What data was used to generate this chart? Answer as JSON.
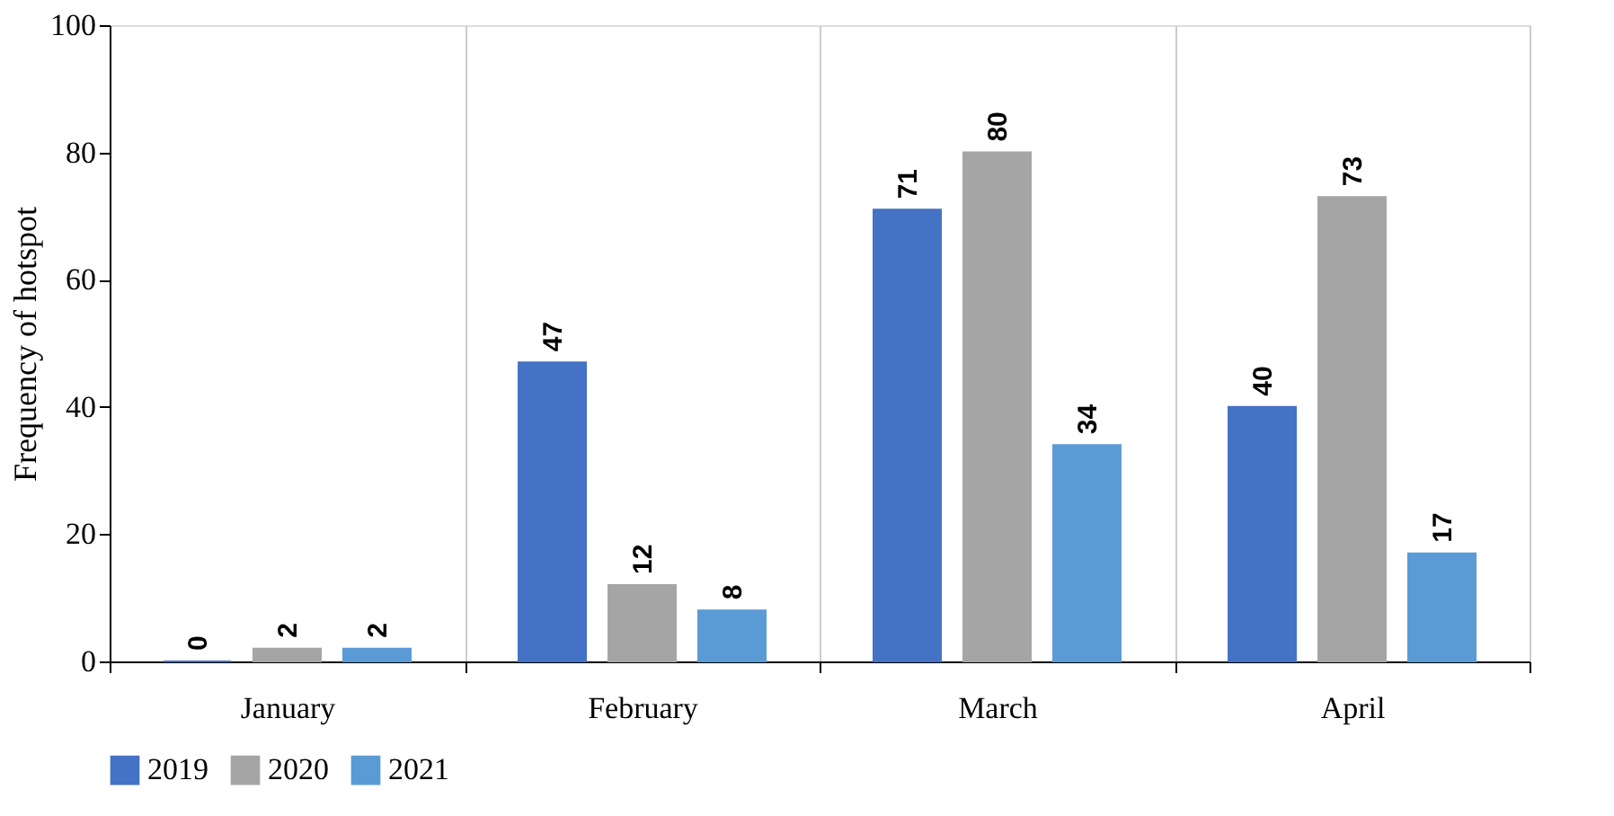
{
  "chart_data": {
    "type": "bar",
    "ylabel": "Frequency of hotspot",
    "categories": [
      "January",
      "February",
      "March",
      "April"
    ],
    "series": [
      {
        "name": "2019",
        "color": "#4472c4",
        "values": [
          0,
          47,
          71,
          40
        ]
      },
      {
        "name": "2020",
        "color": "#a5a5a5",
        "values": [
          2,
          12,
          80,
          73
        ]
      },
      {
        "name": "2021",
        "color": "#5b9bd5",
        "values": [
          2,
          8,
          34,
          17
        ]
      }
    ],
    "ylim": [
      0,
      100
    ],
    "yticks": [
      0,
      20,
      40,
      60,
      80,
      100
    ],
    "grid": "x",
    "legend": "bottom",
    "data_labels": true
  }
}
